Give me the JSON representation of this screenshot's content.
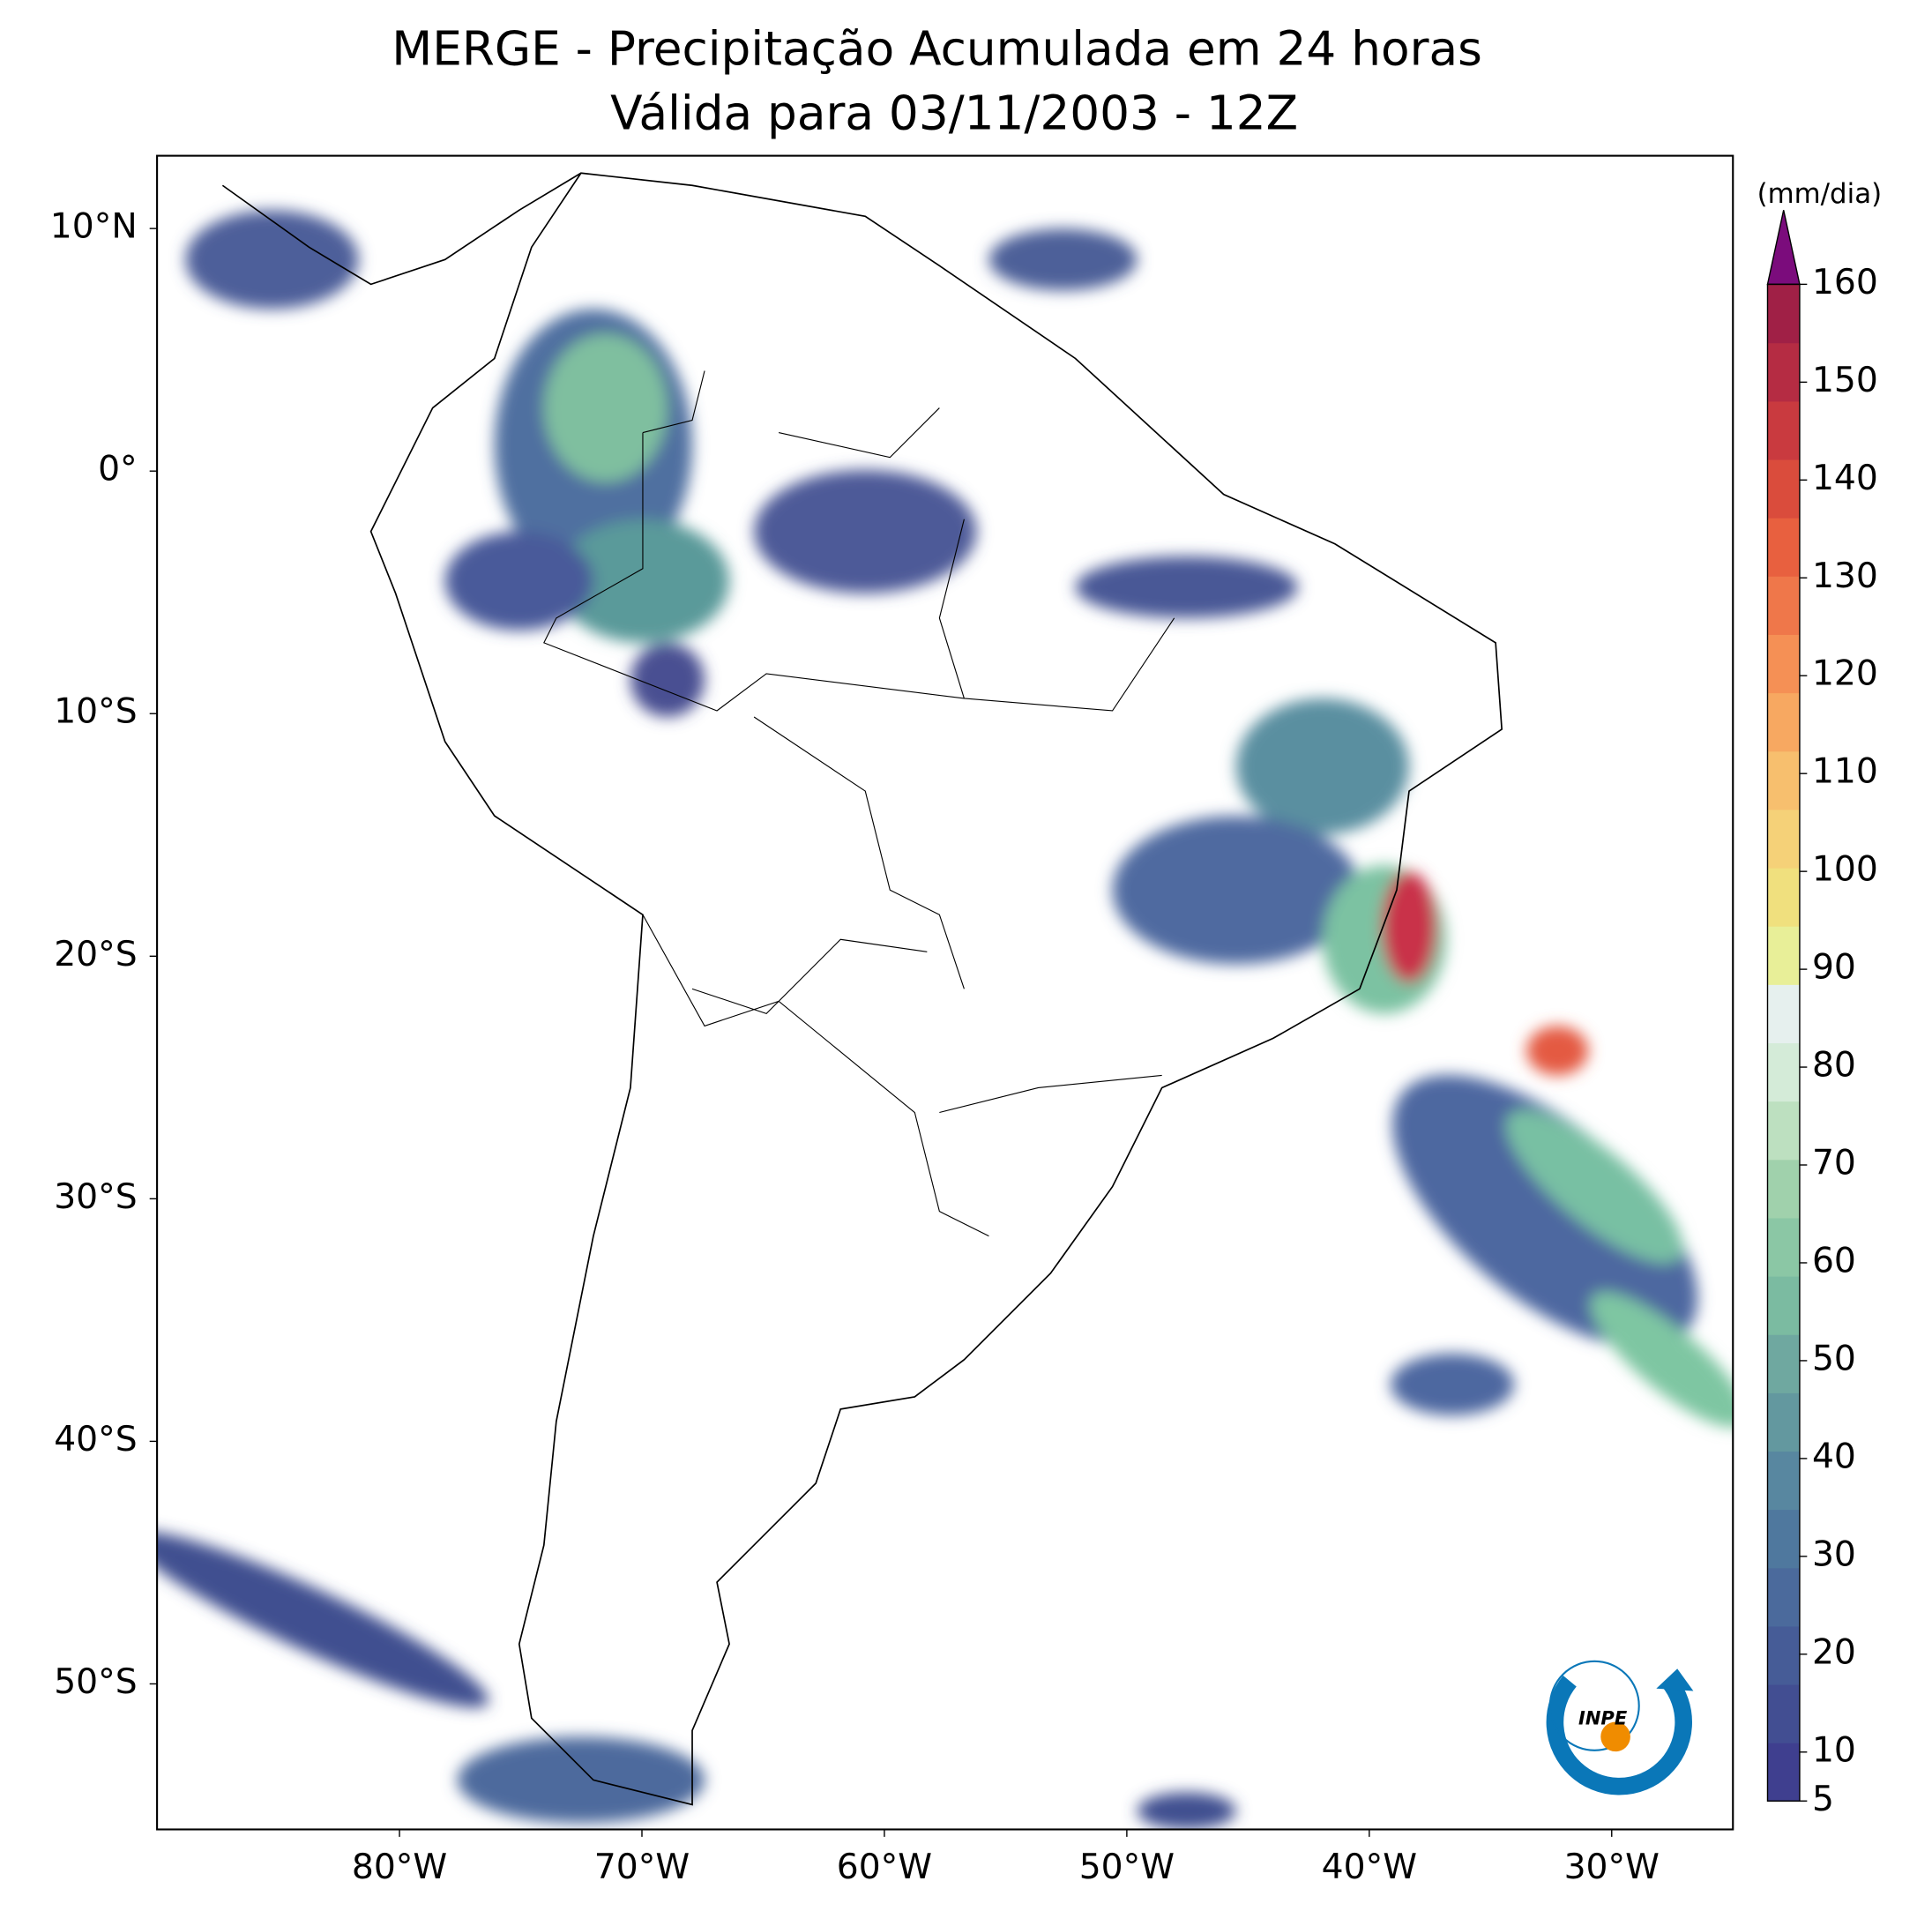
{
  "header": {
    "title": "MERGE - Precipitação Acumulada em 24 horas",
    "subtitle": "Válida para 03/11/2003 - 12Z"
  },
  "map": {
    "xlim": [
      -90,
      -25
    ],
    "ylim": [
      -56,
      13
    ],
    "lat_ticks": [
      {
        "value": 10,
        "label": "10°N"
      },
      {
        "value": 0,
        "label": "0°"
      },
      {
        "value": -10,
        "label": "10°S"
      },
      {
        "value": -20,
        "label": "20°S"
      },
      {
        "value": -30,
        "label": "30°S"
      },
      {
        "value": -40,
        "label": "40°S"
      },
      {
        "value": -50,
        "label": "50°S"
      }
    ],
    "lon_ticks": [
      {
        "value": -80,
        "label": "80°W"
      },
      {
        "value": -70,
        "label": "70°W"
      },
      {
        "value": -60,
        "label": "60°W"
      },
      {
        "value": -50,
        "label": "50°W"
      },
      {
        "value": -40,
        "label": "40°W"
      },
      {
        "value": -30,
        "label": "30°W"
      }
    ]
  },
  "colorbar": {
    "label": "(mm/dia)",
    "lim": [
      5,
      160
    ],
    "ticks": [
      5,
      10,
      20,
      30,
      40,
      50,
      60,
      70,
      80,
      90,
      100,
      110,
      120,
      130,
      140,
      150,
      160
    ]
  },
  "logo": {
    "text": "INPE"
  }
}
